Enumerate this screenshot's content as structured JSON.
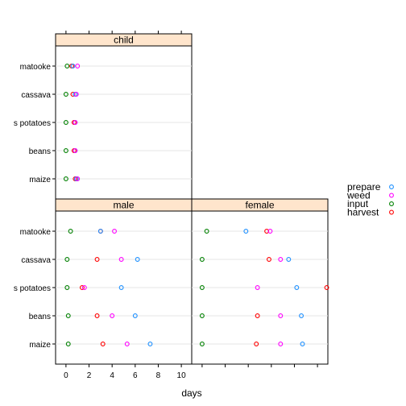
{
  "chart_data": {
    "type": "scatter",
    "xlabel": "days",
    "x_ticks": [
      0,
      2,
      4,
      6,
      8,
      10
    ],
    "xlim": [
      -0.9,
      10.9
    ],
    "categories": [
      "maize",
      "beans",
      "s potatoes",
      "cassava",
      "matooke"
    ],
    "series_names": [
      "prepare",
      "weed",
      "input",
      "harvest"
    ],
    "colors": {
      "prepare": "#1e90ff",
      "weed": "#ff00ff",
      "input": "#008000",
      "harvest": "#ff0000"
    },
    "strip_fill": "#ffe5cc",
    "legend_position": "right",
    "panels": [
      {
        "name": "child",
        "values": {
          "input": {
            "maize": 0.0,
            "beans": 0.0,
            "s potatoes": 0.0,
            "cassava": 0.0,
            "matooke": 0.1
          },
          "weed": {
            "maize": 1.0,
            "beans": 0.8,
            "s potatoes": 0.8,
            "cassava": 0.9,
            "matooke": 1.0
          },
          "harvest": {
            "maize": 0.8,
            "beans": 0.7,
            "s potatoes": 0.7,
            "cassava": 0.6,
            "matooke": 0.5
          },
          "prepare": {
            "maize": 0.9,
            "beans": 0.8,
            "s potatoes": 0.8,
            "cassava": 0.8,
            "matooke": 0.6
          }
        }
      },
      {
        "name": "male",
        "values": {
          "input": {
            "maize": 0.2,
            "beans": 0.2,
            "s potatoes": 0.1,
            "cassava": 0.1,
            "matooke": 0.4
          },
          "weed": {
            "maize": 5.3,
            "beans": 4.0,
            "s potatoes": 1.6,
            "cassava": 4.8,
            "matooke": 4.2
          },
          "harvest": {
            "maize": 3.2,
            "beans": 2.7,
            "s potatoes": 1.4,
            "cassava": 2.7,
            "matooke": 3.0
          },
          "prepare": {
            "maize": 7.3,
            "beans": 6.0,
            "s potatoes": 4.8,
            "cassava": 6.2,
            "matooke": 3.0
          }
        }
      },
      {
        "name": "female",
        "values": {
          "input": {
            "maize": 0.0,
            "beans": 0.0,
            "s potatoes": 0.0,
            "cassava": 0.0,
            "matooke": 0.4
          },
          "weed": {
            "maize": 6.8,
            "beans": 6.8,
            "s potatoes": 4.8,
            "cassava": 6.8,
            "matooke": 5.9
          },
          "harvest": {
            "maize": 4.7,
            "beans": 4.8,
            "s potatoes": 10.8,
            "cassava": 5.8,
            "matooke": 5.6
          },
          "prepare": {
            "maize": 8.7,
            "beans": 8.6,
            "s potatoes": 8.2,
            "cassava": 7.5,
            "matooke": 3.8
          }
        }
      }
    ]
  }
}
